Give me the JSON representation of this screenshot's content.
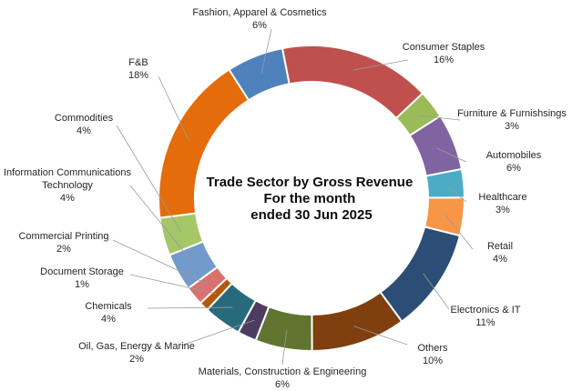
{
  "chart_data": {
    "type": "pie",
    "variant": "donut",
    "title": [
      "Trade Sector by Gross Revenue",
      "For the month",
      "ended 30 Jun 2025"
    ],
    "categories": [
      "Consumer Staples",
      "Furniture & Furnishsings",
      "Automobiles",
      "Healthcare",
      "Retail",
      "Electronics & IT",
      "Others",
      "Materials, Construction & Engineering",
      "Oil, Gas, Energy & Marine",
      "Chemicals",
      "Document Storage",
      "Commercial Printing",
      "Information Communications Technology",
      "Commodities",
      "F&B",
      "Fashion, Apparel & Cosmetics"
    ],
    "values": [
      16,
      3,
      6,
      3,
      4,
      11,
      10,
      6,
      2,
      4,
      1,
      2,
      4,
      4,
      18,
      6
    ],
    "value_labels": [
      "16%",
      "3%",
      "6%",
      "3%",
      "4%",
      "11%",
      "10%",
      "6%",
      "2%",
      "4%",
      "1%",
      "2%",
      "4%",
      "4%",
      "18%",
      "6%"
    ],
    "colors": [
      "#C0504D",
      "#9BBB59",
      "#8064A2",
      "#4BACC6",
      "#F79646",
      "#2C4D75",
      "#7F3F0F",
      "#5F7530",
      "#4D3B62",
      "#276A7C",
      "#B65708",
      "#D9726F",
      "#729ACA",
      "#A5C768",
      "#E46C0A",
      "#4F81BD"
    ],
    "legend": "none"
  }
}
